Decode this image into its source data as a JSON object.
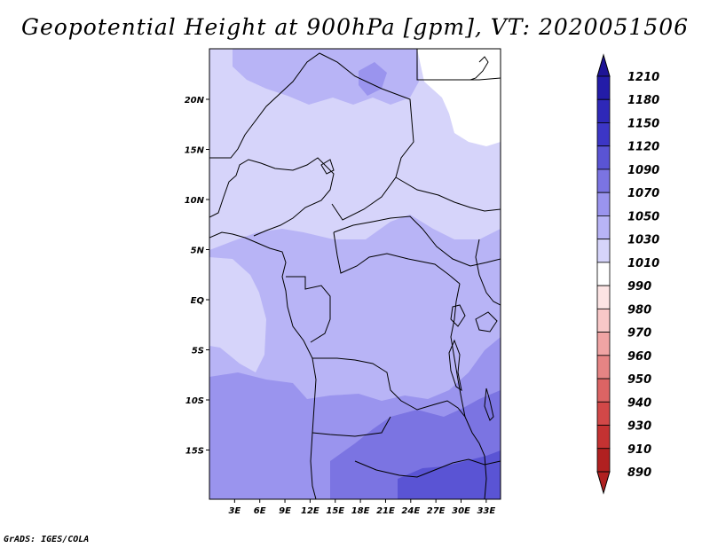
{
  "title": "Geopotential Height at 900hPa [gpm], VT: 2020051506",
  "footer": "GrADS: IGES/COLA",
  "map": {
    "lat_labels": [
      {
        "lat": 20,
        "text": "20N"
      },
      {
        "lat": 15,
        "text": "15N"
      },
      {
        "lat": 10,
        "text": "10N"
      },
      {
        "lat": 5,
        "text": "5N"
      },
      {
        "lat": 0,
        "text": "EQ"
      },
      {
        "lat": -5,
        "text": "5S"
      },
      {
        "lat": -10,
        "text": "10S"
      },
      {
        "lat": -15,
        "text": "15S"
      }
    ],
    "lon_labels": [
      {
        "lon": 3,
        "text": "3E"
      },
      {
        "lon": 6,
        "text": "6E"
      },
      {
        "lon": 9,
        "text": "9E"
      },
      {
        "lon": 12,
        "text": "12E"
      },
      {
        "lon": 15,
        "text": "15E"
      },
      {
        "lon": 18,
        "text": "18E"
      },
      {
        "lon": 21,
        "text": "21E"
      },
      {
        "lon": 24,
        "text": "24E"
      },
      {
        "lon": 27,
        "text": "27E"
      },
      {
        "lon": 30,
        "text": "30E"
      },
      {
        "lon": 33,
        "text": "33E"
      }
    ]
  },
  "colorbar": {
    "levels": [
      {
        "label": "1210",
        "color": "#1e1496"
      },
      {
        "label": "1180",
        "color": "#231ca8"
      },
      {
        "label": "1150",
        "color": "#2e28b8"
      },
      {
        "label": "1120",
        "color": "#3c36c6"
      },
      {
        "label": "1090",
        "color": "#5a54d4"
      },
      {
        "label": "1070",
        "color": "#7b74e2"
      },
      {
        "label": "1050",
        "color": "#9a94ee"
      },
      {
        "label": "1030",
        "color": "#b8b4f6"
      },
      {
        "label": "1010",
        "color": "#d6d4fa"
      },
      {
        "label": "990",
        "color": "#ffffff"
      },
      {
        "label": "980",
        "color": "#fce4e4"
      },
      {
        "label": "970",
        "color": "#f8c8c8"
      },
      {
        "label": "960",
        "color": "#f0a4a4"
      },
      {
        "label": "950",
        "color": "#e68484"
      },
      {
        "label": "940",
        "color": "#dc6464"
      },
      {
        "label": "930",
        "color": "#d24848"
      },
      {
        "label": "910",
        "color": "#c43232"
      },
      {
        "label": "890",
        "color": "#b02020"
      }
    ],
    "top_color": "#1e1496",
    "bottom_color": "#b02020"
  }
}
